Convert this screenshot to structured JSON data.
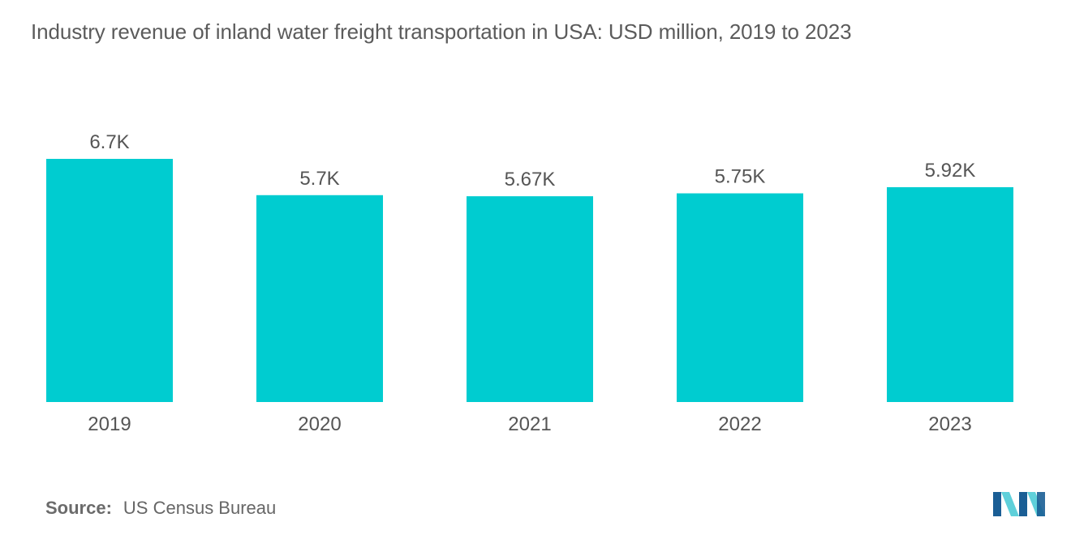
{
  "colors": {
    "bar": "#00ccd0",
    "text": "#555555",
    "logo_dark": "#1a5e95",
    "logo_light": "#5fd0da"
  },
  "source": {
    "label": "Source:",
    "value": "US Census Bureau"
  },
  "logo": {
    "icon": "mordor-logo"
  },
  "chart_data": {
    "type": "bar",
    "title": "Industry revenue of inland water freight transportation in USA: USD million, 2019 to 2023",
    "xlabel": "",
    "ylabel": "",
    "categories": [
      "2019",
      "2020",
      "2021",
      "2022",
      "2023"
    ],
    "values": [
      6700,
      5700,
      5670,
      5750,
      5920
    ],
    "data_labels": [
      "6.7K",
      "5.7K",
      "5.67K",
      "5.75K",
      "5.92K"
    ],
    "ylim": [
      0,
      6700
    ],
    "grid": false,
    "legend": "none"
  }
}
